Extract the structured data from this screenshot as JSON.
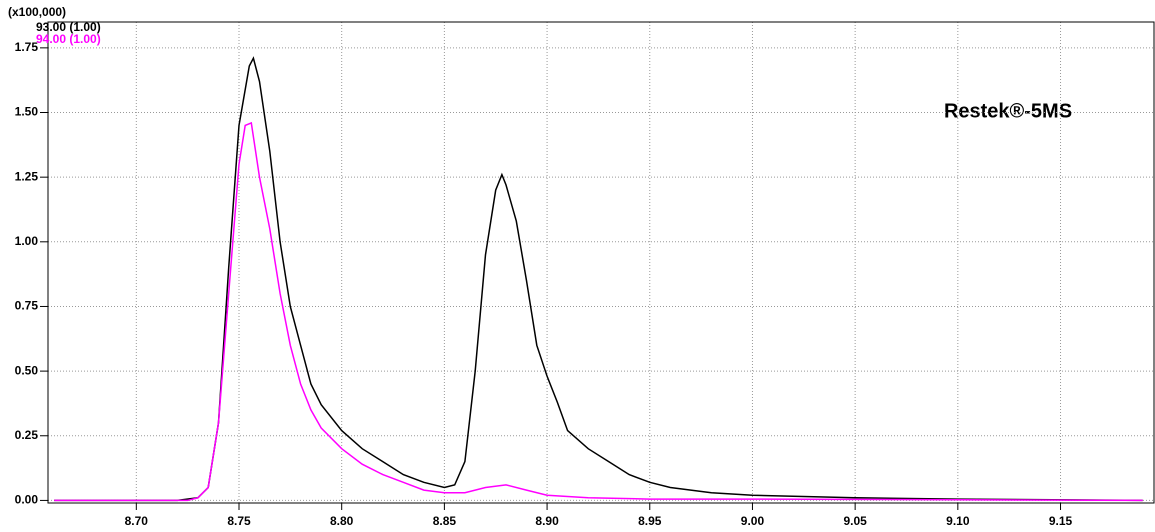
{
  "chart_data": {
    "type": "line",
    "scale_label": "(x100,000)",
    "annotation": "Restek®-5MS",
    "xlim": [
      8.657,
      9.196
    ],
    "ylim": [
      -0.01,
      1.85
    ],
    "xticks": [
      {
        "value": 8.7,
        "label": "8.70"
      },
      {
        "value": 8.75,
        "label": "8.75"
      },
      {
        "value": 8.8,
        "label": "8.80"
      },
      {
        "value": 8.85,
        "label": "8.85"
      },
      {
        "value": 8.9,
        "label": "8.90"
      },
      {
        "value": 8.95,
        "label": "8.95"
      },
      {
        "value": 9.0,
        "label": "9.00"
      },
      {
        "value": 9.05,
        "label": "9.05"
      },
      {
        "value": 9.1,
        "label": "9.10"
      },
      {
        "value": 9.15,
        "label": "9.15"
      }
    ],
    "yticks": [
      {
        "value": 0,
        "label": "0.00"
      },
      {
        "value": 0.25,
        "label": "0.25"
      },
      {
        "value": 0.5,
        "label": "0.50"
      },
      {
        "value": 0.75,
        "label": "0.75"
      },
      {
        "value": 1,
        "label": "1.00"
      },
      {
        "value": 1.25,
        "label": "1.25"
      },
      {
        "value": 1.5,
        "label": "1.50"
      },
      {
        "value": 1.75,
        "label": "1.75"
      }
    ],
    "grid": true,
    "series": [
      {
        "name": "93.00 (1.00)",
        "color": "#000000",
        "x": [
          8.66,
          8.72,
          8.73,
          8.735,
          8.74,
          8.745,
          8.75,
          8.755,
          8.757,
          8.76,
          8.765,
          8.77,
          8.775,
          8.78,
          8.785,
          8.79,
          8.8,
          8.81,
          8.82,
          8.83,
          8.84,
          8.85,
          8.855,
          8.86,
          8.865,
          8.87,
          8.875,
          8.878,
          8.88,
          8.885,
          8.89,
          8.895,
          8.9,
          8.905,
          8.91,
          8.92,
          8.93,
          8.94,
          8.95,
          8.96,
          8.98,
          9.0,
          9.05,
          9.1,
          9.19
        ],
        "values": [
          0,
          0,
          0.01,
          0.05,
          0.3,
          0.9,
          1.45,
          1.68,
          1.71,
          1.62,
          1.35,
          1.0,
          0.75,
          0.6,
          0.45,
          0.37,
          0.27,
          0.2,
          0.15,
          0.1,
          0.07,
          0.05,
          0.06,
          0.15,
          0.5,
          0.95,
          1.2,
          1.26,
          1.22,
          1.08,
          0.85,
          0.6,
          0.48,
          0.38,
          0.27,
          0.2,
          0.15,
          0.1,
          0.07,
          0.05,
          0.03,
          0.02,
          0.01,
          0.005,
          0
        ]
      },
      {
        "name": "94.00 (1.00)",
        "color": "#ff00ff",
        "x": [
          8.66,
          8.725,
          8.73,
          8.735,
          8.74,
          8.745,
          8.75,
          8.753,
          8.756,
          8.76,
          8.765,
          8.77,
          8.775,
          8.78,
          8.785,
          8.79,
          8.8,
          8.81,
          8.82,
          8.83,
          8.84,
          8.85,
          8.86,
          8.87,
          8.88,
          8.89,
          8.9,
          8.92,
          8.95,
          9.0,
          9.19
        ],
        "values": [
          0,
          0,
          0.01,
          0.05,
          0.3,
          0.8,
          1.3,
          1.45,
          1.46,
          1.25,
          1.05,
          0.8,
          0.6,
          0.45,
          0.35,
          0.28,
          0.2,
          0.14,
          0.1,
          0.07,
          0.04,
          0.03,
          0.03,
          0.05,
          0.06,
          0.04,
          0.02,
          0.01,
          0.005,
          0.005,
          0
        ]
      }
    ]
  }
}
